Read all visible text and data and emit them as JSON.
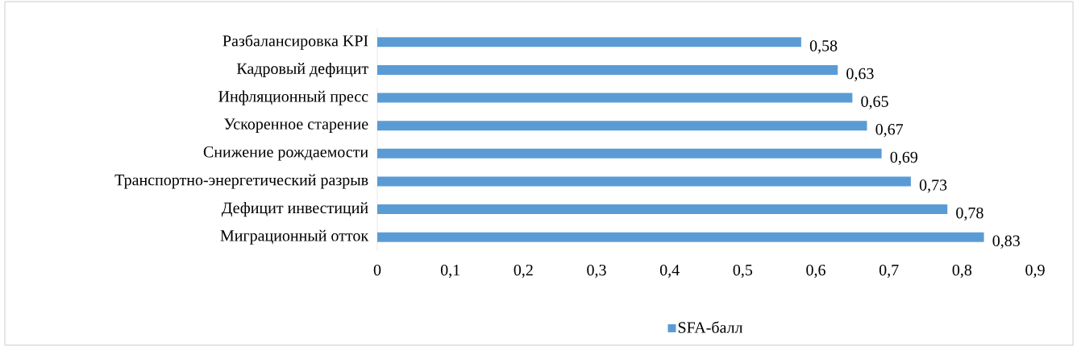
{
  "chart_data": {
    "type": "bar",
    "orientation": "horizontal",
    "categories": [
      "Разбалансировка KPI",
      "Кадровый дефицит",
      "Инфляционный пресс",
      "Ускоренное старение",
      "Снижение рождаемости",
      "Транспортно-энергетический разрыв",
      "Дефицит инвестиций",
      "Миграционный отток"
    ],
    "series": [
      {
        "name": "SFA-балл",
        "color": "#5b9bd5",
        "values": [
          0.58,
          0.63,
          0.65,
          0.67,
          0.69,
          0.73,
          0.78,
          0.83
        ],
        "value_labels": [
          "0,58",
          "0,63",
          "0,65",
          "0,67",
          "0,69",
          "0,73",
          "0,78",
          "0,83"
        ]
      }
    ],
    "xlim": [
      0,
      0.9
    ],
    "xticks": [
      0,
      {
        "value": 0.1,
        "label": "0,1"
      },
      {
        "value": 0.2,
        "label": "0,2"
      },
      {
        "value": 0.3,
        "label": "0,3"
      },
      {
        "value": 0.4,
        "label": "0,4"
      },
      {
        "value": 0.5,
        "label": "0,5"
      },
      {
        "value": 0.6,
        "label": "0,6"
      },
      {
        "value": 0.7,
        "label": "0,7"
      },
      {
        "value": 0.8,
        "label": "0,8"
      },
      {
        "value": 0.9,
        "label": "0,9"
      }
    ],
    "grid": false,
    "legend": "bottom"
  }
}
